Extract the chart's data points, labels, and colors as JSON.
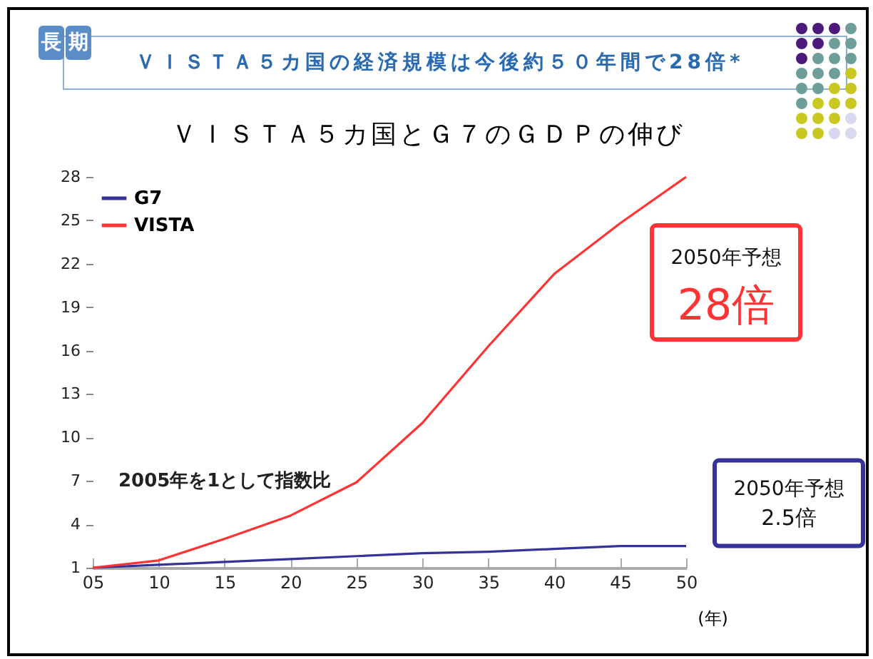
{
  "chart_data": {
    "type": "line",
    "title": "ＶＩＳＴＡ５カ国とＧ７のＧＤＰの伸び",
    "subtitle": "ＶＩＳＴＡ５カ国の経済規模は今後約５０年間で28倍*",
    "xlabel": "(年)",
    "x": [
      2005,
      2010,
      2015,
      2020,
      2025,
      2030,
      2035,
      2040,
      2045,
      2050
    ],
    "series": [
      {
        "name": "G7",
        "color": "#333399",
        "values": [
          1,
          1.2,
          1.4,
          1.6,
          1.8,
          2.0,
          2.1,
          2.3,
          2.5,
          2.5
        ]
      },
      {
        "name": "VISTA",
        "color": "#ff3333",
        "values": [
          1,
          1.5,
          3.0,
          4.6,
          6.9,
          11,
          16.3,
          21.3,
          24.8,
          28
        ]
      }
    ],
    "xlim": [
      2005,
      2050
    ],
    "xticks": [
      {
        "value": 2005,
        "label": "05"
      },
      {
        "value": 2010,
        "label": "10"
      },
      {
        "value": 2015,
        "label": "15"
      },
      {
        "value": 2020,
        "label": "20"
      },
      {
        "value": 2025,
        "label": "25"
      },
      {
        "value": 2030,
        "label": "30"
      },
      {
        "value": 2035,
        "label": "35"
      },
      {
        "value": 2040,
        "label": "40"
      },
      {
        "value": 2045,
        "label": "45"
      },
      {
        "value": 2050,
        "label": "50"
      }
    ],
    "ylim": [
      1,
      28
    ],
    "yticks": [
      1,
      4,
      7,
      10,
      13,
      16,
      19,
      22,
      25,
      28
    ],
    "legend": "top left",
    "grid": false,
    "annotations": [
      "長期",
      "2005年を1として指数比",
      {
        "text": "2050年予想\n28倍",
        "x": 2050,
        "y": 28
      },
      {
        "text": "2050年予想\n2.5倍",
        "x": 2050,
        "y": 2.5
      }
    ]
  }
}
